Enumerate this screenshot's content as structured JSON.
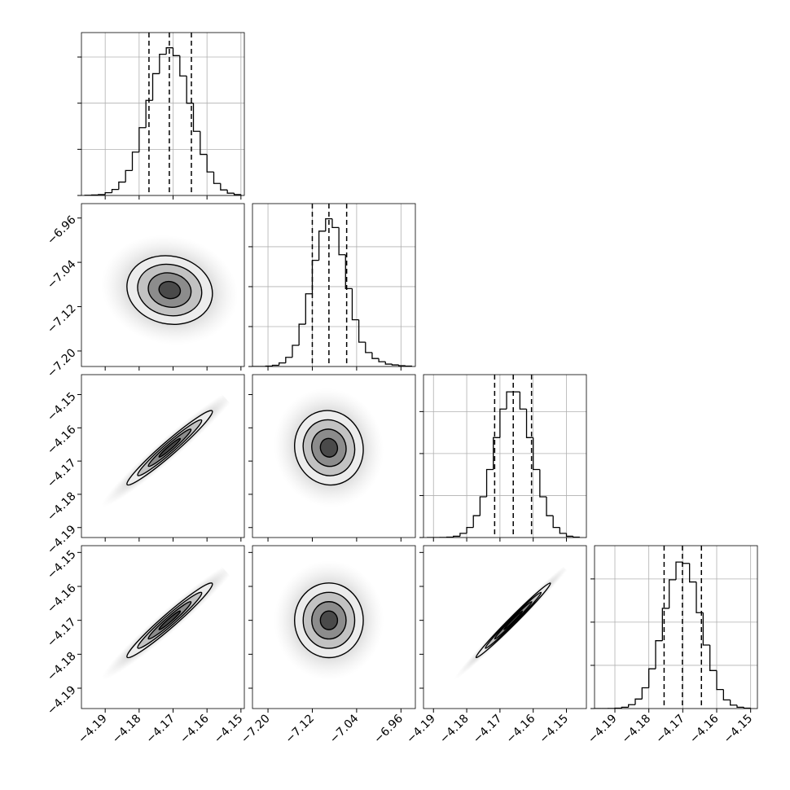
{
  "chart_data": {
    "type": "corner",
    "params": [
      {
        "lim": [
          -4.197,
          -4.149
        ],
        "ticks": [
          {
            "value": -4.19,
            "label": "−4.19"
          },
          {
            "value": -4.18,
            "label": "−4.18"
          },
          {
            "value": -4.17,
            "label": "−4.17"
          },
          {
            "value": -4.16,
            "label": "−4.16"
          },
          {
            "value": -4.15,
            "label": "−4.15"
          }
        ]
      },
      {
        "lim": [
          -7.228,
          -6.934
        ],
        "ticks": [
          {
            "value": -7.2,
            "label": "−7.20"
          },
          {
            "value": -7.12,
            "label": "−7.12"
          },
          {
            "value": -7.04,
            "label": "−7.04"
          },
          {
            "value": -6.96,
            "label": "−6.96"
          }
        ]
      },
      {
        "lim": [
          -4.193,
          -4.144
        ],
        "ticks": [
          {
            "value": -4.19,
            "label": "−4.19"
          },
          {
            "value": -4.18,
            "label": "−4.18"
          },
          {
            "value": -4.17,
            "label": "−4.17"
          },
          {
            "value": -4.16,
            "label": "−4.16"
          },
          {
            "value": -4.15,
            "label": "−4.15"
          }
        ]
      },
      {
        "lim": [
          -4.196,
          -4.148
        ],
        "ticks": [
          {
            "value": -4.19,
            "label": "−4.19"
          },
          {
            "value": -4.18,
            "label": "−4.18"
          },
          {
            "value": -4.17,
            "label": "−4.17"
          },
          {
            "value": -4.16,
            "label": "−4.16"
          },
          {
            "value": -4.15,
            "label": "−4.15"
          }
        ]
      }
    ],
    "grid": true,
    "histograms": [
      {
        "bins": [
          -4.196,
          -4.194,
          -4.192,
          -4.19,
          -4.188,
          -4.186,
          -4.184,
          -4.182,
          -4.18,
          -4.178,
          -4.176,
          -4.174,
          -4.172,
          -4.17,
          -4.168,
          -4.166,
          -4.164,
          -4.162,
          -4.16,
          -4.158,
          -4.156,
          -4.154,
          -4.152,
          -4.15
        ],
        "values": [
          0.003,
          0.01,
          0.02,
          0.06,
          0.13,
          0.29,
          0.54,
          0.94,
          1.47,
          2.06,
          2.64,
          3.06,
          3.2,
          3.03,
          2.59,
          2.0,
          1.39,
          0.89,
          0.51,
          0.26,
          0.12,
          0.05,
          0.02
        ],
        "ylim": [
          0,
          3.53
        ],
        "yticks": [
          0,
          1,
          2,
          3
        ],
        "quantiles": [
          -4.1771,
          -4.1711,
          -4.1646
        ]
      },
      {
        "bins": [
          -7.228,
          -7.216,
          -7.204,
          -7.192,
          -7.18,
          -7.168,
          -7.156,
          -7.144,
          -7.132,
          -7.12,
          -7.108,
          -7.096,
          -7.084,
          -7.072,
          -7.06,
          -7.048,
          -7.036,
          -7.024,
          -7.012,
          -7.0,
          -6.988,
          -6.976,
          -6.964,
          -6.952,
          -6.94
        ],
        "values": [
          0,
          0,
          0.01,
          0.03,
          0.09,
          0.23,
          0.53,
          1.06,
          1.82,
          2.66,
          3.39,
          3.7,
          3.48,
          2.8,
          1.95,
          1.17,
          0.61,
          0.35,
          0.2,
          0.12,
          0.06,
          0.04,
          0.02,
          0.01
        ],
        "ylim": [
          0,
          4.08
        ],
        "yticks": [
          0,
          1,
          2,
          3
        ],
        "quantiles": [
          -7.12,
          -7.09,
          -7.058
        ]
      },
      {
        "bins": [
          -4.192,
          -4.19,
          -4.188,
          -4.186,
          -4.184,
          -4.182,
          -4.18,
          -4.178,
          -4.176,
          -4.174,
          -4.172,
          -4.17,
          -4.168,
          -4.166,
          -4.164,
          -4.162,
          -4.16,
          -4.158,
          -4.156,
          -4.154,
          -4.152,
          -4.15,
          -4.148,
          -4.146
        ],
        "values": [
          0,
          0,
          0.003,
          0.01,
          0.03,
          0.1,
          0.24,
          0.52,
          0.97,
          1.62,
          2.38,
          3.06,
          3.47,
          3.47,
          3.06,
          2.38,
          1.62,
          0.97,
          0.52,
          0.24,
          0.1,
          0.03,
          0.01
        ],
        "ylim": [
          0,
          3.88
        ],
        "yticks": [
          0,
          1,
          2,
          3
        ],
        "quantiles": [
          -4.1716,
          -4.166,
          -4.1605
        ]
      },
      {
        "bins": [
          -4.196,
          -4.194,
          -4.192,
          -4.19,
          -4.188,
          -4.186,
          -4.184,
          -4.182,
          -4.18,
          -4.178,
          -4.176,
          -4.174,
          -4.172,
          -4.17,
          -4.168,
          -4.166,
          -4.164,
          -4.162,
          -4.16,
          -4.158,
          -4.156,
          -4.154,
          -4.152,
          -4.15
        ],
        "values": [
          0,
          0,
          0.003,
          0.01,
          0.03,
          0.09,
          0.22,
          0.48,
          0.92,
          1.57,
          2.32,
          2.98,
          3.39,
          3.36,
          2.93,
          2.22,
          1.47,
          0.88,
          0.44,
          0.2,
          0.08,
          0.03,
          0.01
        ],
        "ylim": [
          0,
          3.77
        ],
        "yticks": [
          0,
          1,
          2,
          3
        ],
        "quantiles": [
          -4.1755,
          -4.1701,
          -4.1645
        ]
      }
    ],
    "densities": [
      {
        "mean": [
          -4.171,
          -7.09
        ],
        "std": [
          0.0063,
          0.031
        ],
        "corr": -0.1
      },
      {
        "mean": [
          -4.171,
          -4.166
        ],
        "std": [
          0.0063,
          0.0056
        ],
        "corr": 0.97
      },
      {
        "mean": [
          -7.09,
          -4.166
        ],
        "std": [
          0.031,
          0.0056
        ],
        "corr": -0.05
      },
      {
        "mean": [
          -4.171,
          -4.17
        ],
        "std": [
          0.0063,
          0.0055
        ],
        "corr": 0.97
      },
      {
        "mean": [
          -7.09,
          -4.17
        ],
        "std": [
          0.031,
          0.0055
        ],
        "corr": 0
      },
      {
        "mean": [
          -4.166,
          -4.17
        ],
        "std": [
          0.0056,
          0.0055
        ],
        "corr": 0.99
      }
    ],
    "contour_levels": [
      0.5,
      1,
      1.5,
      2
    ],
    "contour_fills": [
      "#4a4a4a",
      "#8c8c8c",
      "#c2c2c2",
      "#ececec"
    ],
    "scatter_sigma": 3.2
  }
}
